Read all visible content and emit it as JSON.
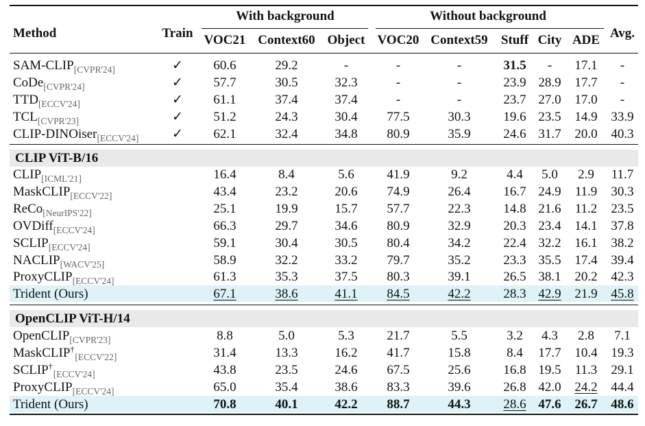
{
  "table": {
    "groups": {
      "with_background": "With background",
      "without_background": "Without background"
    },
    "headers": {
      "method": "Method",
      "train": "Train",
      "voc21": "VOC21",
      "context60": "Context60",
      "object": "Object",
      "voc20": "VOC20",
      "context59": "Context59",
      "stuff": "Stuff",
      "city": "City",
      "ade": "ADE",
      "avg": "Avg."
    },
    "columns": [
      "train",
      "voc21",
      "context60",
      "object",
      "voc20",
      "context59",
      "stuff",
      "city",
      "ade",
      "avg"
    ],
    "trained": [
      {
        "name": "SAM-CLIP",
        "venue": "[CVPR'24]",
        "cells": [
          "✓",
          "60.6",
          "29.2",
          "-",
          "-",
          "-",
          "31.5",
          "-",
          "17.1",
          "-"
        ],
        "bold": [
          6
        ]
      },
      {
        "name": "CoDe",
        "venue": "[CVPR'24]",
        "cells": [
          "✓",
          "57.7",
          "30.5",
          "32.3",
          "-",
          "-",
          "23.9",
          "28.9",
          "17.7",
          "-"
        ]
      },
      {
        "name": "TTD",
        "venue": "[ECCV'24]",
        "cells": [
          "✓",
          "61.1",
          "37.4",
          "37.4",
          "-",
          "-",
          "23.7",
          "27.0",
          "17.0",
          "-"
        ]
      },
      {
        "name": "TCL",
        "venue": "[CVPR'23]",
        "cells": [
          "✓",
          "51.2",
          "24.3",
          "30.4",
          "77.5",
          "30.3",
          "19.6",
          "23.5",
          "14.9",
          "33.9"
        ]
      },
      {
        "name": "CLIP-DINOiser",
        "venue": "[ECCV'24]",
        "cells": [
          "✓",
          "62.1",
          "32.4",
          "34.8",
          "80.9",
          "35.9",
          "24.6",
          "31.7",
          "20.0",
          "40.3"
        ]
      }
    ],
    "section_vitb": {
      "title": "CLIP ViT-B/16",
      "rows": [
        {
          "name": "CLIP",
          "venue": "[ICML'21]",
          "cells": [
            "",
            "16.4",
            "8.4",
            "5.6",
            "41.9",
            "9.2",
            "4.4",
            "5.0",
            "2.9",
            "11.7"
          ]
        },
        {
          "name": "MaskCLIP",
          "venue": "[ECCV'22]",
          "cells": [
            "",
            "43.4",
            "23.2",
            "20.6",
            "74.9",
            "26.4",
            "16.7",
            "24.9",
            "11.9",
            "30.3"
          ]
        },
        {
          "name": "ReCo",
          "venue": "[NeurIPS'22]",
          "cells": [
            "",
            "25.1",
            "19.9",
            "15.7",
            "57.7",
            "22.3",
            "14.8",
            "21.6",
            "11.2",
            "23.5"
          ]
        },
        {
          "name": "OVDiff",
          "venue": "[ECCV'24]",
          "cells": [
            "",
            "66.3",
            "29.7",
            "34.6",
            "80.9",
            "32.9",
            "20.3",
            "23.4",
            "14.1",
            "37.8"
          ]
        },
        {
          "name": "SCLIP",
          "venue": "[ECCV'24]",
          "cells": [
            "",
            "59.1",
            "30.4",
            "30.5",
            "80.4",
            "34.2",
            "22.4",
            "32.2",
            "16.1",
            "38.2"
          ]
        },
        {
          "name": "NACLIP",
          "venue": "[WACV'25]",
          "cells": [
            "",
            "58.9",
            "32.2",
            "33.2",
            "79.7",
            "35.2",
            "23.3",
            "35.5",
            "17.4",
            "39.4"
          ]
        },
        {
          "name": "ProxyCLIP",
          "venue": "[ECCV'24]",
          "cells": [
            "",
            "61.3",
            "35.3",
            "37.5",
            "80.3",
            "39.1",
            "26.5",
            "38.1",
            "20.2",
            "42.3"
          ]
        },
        {
          "name": "Trident (Ours)",
          "venue": "",
          "cells": [
            "",
            "67.1",
            "38.6",
            "41.1",
            "84.5",
            "42.2",
            "28.3",
            "42.9",
            "21.9",
            "45.8"
          ],
          "underline": [
            1,
            2,
            3,
            4,
            5,
            7,
            9
          ],
          "highlight": true
        }
      ]
    },
    "section_vith": {
      "title": "OpenCLIP ViT-H/14",
      "rows": [
        {
          "name": "OpenCLIP",
          "venue": "[CVPR'23]",
          "cells": [
            "",
            "8.8",
            "5.0",
            "5.3",
            "21.7",
            "5.5",
            "3.2",
            "4.3",
            "2.8",
            "7.1"
          ]
        },
        {
          "name": "MaskCLIP",
          "dagger": "†",
          "venue": "[ECCV'22]",
          "cells": [
            "",
            "31.4",
            "13.3",
            "16.2",
            "41.7",
            "15.8",
            "8.4",
            "17.7",
            "10.4",
            "19.3"
          ]
        },
        {
          "name": "SCLIP",
          "dagger": "†",
          "venue": "[ECCV'24]",
          "cells": [
            "",
            "43.8",
            "23.5",
            "24.6",
            "67.5",
            "25.6",
            "16.8",
            "19.5",
            "11.3",
            "29.1"
          ]
        },
        {
          "name": "ProxyCLIP",
          "venue": "[ECCV'24]",
          "cells": [
            "",
            "65.0",
            "35.4",
            "38.6",
            "83.3",
            "39.6",
            "26.8",
            "42.0",
            "24.2",
            "44.4"
          ],
          "underline": [
            8
          ]
        },
        {
          "name": "Trident (Ours)",
          "venue": "",
          "cells": [
            "",
            "70.8",
            "40.1",
            "42.2",
            "88.7",
            "44.3",
            "28.6",
            "47.6",
            "26.7",
            "48.6"
          ],
          "bold": [
            1,
            2,
            3,
            4,
            5,
            7,
            8,
            9
          ],
          "underline": [
            6
          ],
          "highlight": true
        }
      ]
    },
    "colors": {
      "section_bg": "#e9e9e9",
      "ours_bg": "#ddf3f8",
      "venue": "#666666"
    }
  }
}
